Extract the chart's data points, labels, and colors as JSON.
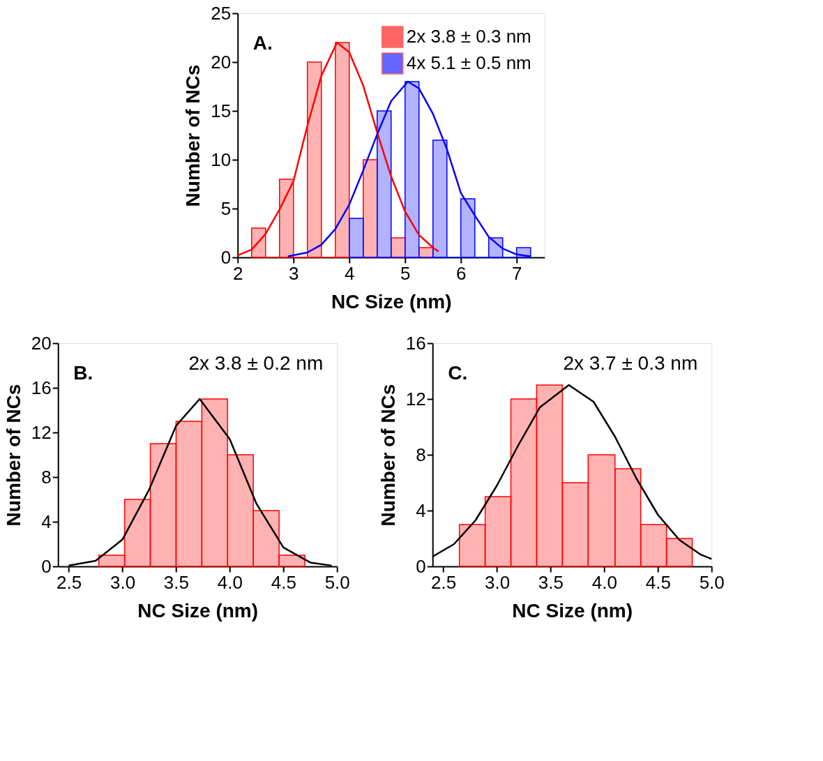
{
  "chart_data": [
    {
      "type": "histogram",
      "xlabel": "NC Size (nm)",
      "ylabel": "Number of NCs",
      "annotations": [
        "A."
      ],
      "xlim": [
        2,
        7.5
      ],
      "xticks": [
        2,
        3,
        4,
        5,
        6,
        7
      ],
      "ylim": [
        0,
        25
      ],
      "yticks": [
        0,
        5,
        10,
        15,
        20,
        25
      ],
      "grid": false,
      "legend": "top right",
      "series": [
        {
          "name": "2x 3.8 ± 0.3 nm",
          "color": "#ff0000",
          "bins": [
            2.25,
            2.5,
            2.75,
            3,
            3.25,
            3.5,
            3.75,
            4,
            4.25,
            4.5,
            4.75,
            5,
            5.25,
            5.5
          ],
          "values": [
            3,
            0,
            8,
            0,
            20,
            0,
            22,
            0,
            10,
            0,
            2,
            0,
            1
          ]
        },
        {
          "name": "4x 5.1 ± 0.5 nm",
          "color": "#0000ff",
          "bins": [
            4,
            4.25,
            4.5,
            4.75,
            5,
            5.25,
            5.5,
            5.75,
            6,
            6.25,
            6.5,
            6.75,
            7,
            7.25
          ],
          "values": [
            4,
            0,
            15,
            0,
            18,
            0,
            12,
            0,
            6,
            0,
            2,
            0,
            1
          ]
        },
        {
          "type": "line",
          "color": "#ff0000",
          "x": [
            2.0,
            2.25,
            2.5,
            2.75,
            3.0,
            3.25,
            3.5,
            3.78,
            4.0,
            4.25,
            4.5,
            4.75,
            5.0,
            5.25,
            5.5,
            5.6
          ],
          "values": [
            0.2,
            0.8,
            2.4,
            4.9,
            7.8,
            13.5,
            18.6,
            22,
            21.0,
            17.6,
            12.8,
            8.3,
            4.7,
            2.3,
            1.0,
            0.6
          ]
        },
        {
          "type": "line",
          "color": "#0000ff",
          "x": [
            2.9,
            3.25,
            3.5,
            3.75,
            4.0,
            4.25,
            4.5,
            4.75,
            5.05,
            5.25,
            5.5,
            5.75,
            6.0,
            6.25,
            6.5,
            6.75,
            7.0,
            7.25
          ],
          "values": [
            0.1,
            0.5,
            1.3,
            2.9,
            5.4,
            8.9,
            12.6,
            16.0,
            18,
            17.3,
            14.7,
            11.1,
            6.6,
            4.3,
            2.1,
            0.9,
            0.3,
            0.1
          ]
        }
      ]
    },
    {
      "type": "histogram",
      "xlabel": "NC Size (nm)",
      "ylabel": "Number of NCs",
      "annotations": [
        "B.",
        "2x 3.8 ± 0.2 nm"
      ],
      "xlim": [
        2.4,
        5.0
      ],
      "xticks": [
        2.5,
        {
          "value": 3,
          "label": "3.0"
        },
        3.5,
        {
          "value": 4,
          "label": "4.0"
        },
        4.5,
        {
          "value": 5,
          "label": "5.0"
        }
      ],
      "ylim": [
        0,
        20
      ],
      "yticks": [
        0,
        4,
        8,
        12,
        16,
        20
      ],
      "grid": false,
      "series": [
        {
          "color": "#ff0000",
          "bins": [
            2.78,
            3.02,
            3.26,
            3.5,
            3.74,
            3.98,
            4.22,
            4.46,
            4.7
          ],
          "values": [
            1,
            6,
            11,
            13,
            15,
            10,
            5,
            1
          ]
        },
        {
          "type": "line",
          "color": "#000000",
          "x": [
            2.5,
            2.75,
            3.0,
            3.25,
            3.5,
            3.72,
            4.0,
            4.25,
            4.5,
            4.75,
            4.95
          ],
          "values": [
            0.08,
            0.5,
            2.4,
            6.9,
            12.6,
            15,
            11.4,
            5.6,
            1.7,
            0.35,
            0.07
          ]
        }
      ]
    },
    {
      "type": "histogram",
      "xlabel": "NC Size (nm)",
      "ylabel": "Number of NCs",
      "annotations": [
        "C.",
        "2x 3.7 ± 0.3 nm"
      ],
      "xlim": [
        2.4,
        5.0
      ],
      "xticks": [
        2.5,
        {
          "value": 3,
          "label": "3.0"
        },
        3.5,
        {
          "value": 4,
          "label": "4.0"
        },
        4.5,
        {
          "value": 5,
          "label": "5.0"
        }
      ],
      "ylim": [
        0,
        16
      ],
      "yticks": [
        0,
        4,
        8,
        12,
        16
      ],
      "grid": false,
      "series": [
        {
          "color": "#ff0000",
          "bins": [
            2.65,
            2.89,
            3.13,
            3.37,
            3.61,
            3.85,
            4.1,
            4.34,
            4.58,
            4.82
          ],
          "values": [
            3,
            5,
            12,
            13,
            6,
            8,
            7,
            3,
            2
          ]
        },
        {
          "type": "line",
          "color": "#000000",
          "x": [
            2.4,
            2.6,
            2.8,
            3.0,
            3.2,
            3.4,
            3.67,
            3.9,
            4.1,
            4.3,
            4.5,
            4.7,
            4.9,
            5.0
          ],
          "values": [
            0.7,
            1.6,
            3.3,
            5.8,
            8.7,
            11.4,
            13,
            11.8,
            9.3,
            6.3,
            3.7,
            1.9,
            0.84,
            0.53
          ]
        }
      ]
    }
  ]
}
